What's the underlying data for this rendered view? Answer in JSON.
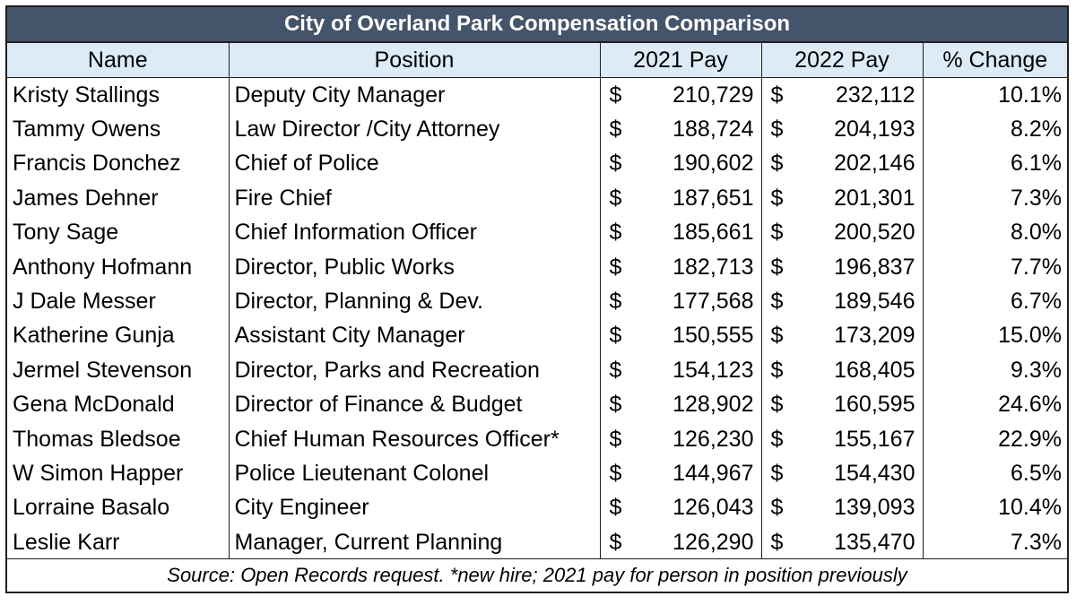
{
  "title": "City of Overland Park Compensation Comparison",
  "headers": {
    "name": "Name",
    "position": "Position",
    "pay_2021": "2021 Pay",
    "pay_2022": "2022 Pay",
    "change": "% Change"
  },
  "currency_symbol": "$",
  "rows": [
    {
      "name": "Kristy Stallings",
      "position": "Deputy City Manager",
      "pay_2021": "210,729",
      "pay_2022": "232,112",
      "change": "10.1%"
    },
    {
      "name": "Tammy Owens",
      "position": "Law Director /City Attorney",
      "pay_2021": "188,724",
      "pay_2022": "204,193",
      "change": "8.2%"
    },
    {
      "name": "Francis Donchez",
      "position": "Chief of Police",
      "pay_2021": "190,602",
      "pay_2022": "202,146",
      "change": "6.1%"
    },
    {
      "name": "James Dehner",
      "position": "Fire Chief",
      "pay_2021": "187,651",
      "pay_2022": "201,301",
      "change": "7.3%"
    },
    {
      "name": "Tony Sage",
      "position": "Chief Information Officer",
      "pay_2021": "185,661",
      "pay_2022": "200,520",
      "change": "8.0%"
    },
    {
      "name": "Anthony Hofmann",
      "position": "Director, Public Works",
      "pay_2021": "182,713",
      "pay_2022": "196,837",
      "change": "7.7%"
    },
    {
      "name": "J Dale Messer",
      "position": "Director, Planning & Dev.",
      "pay_2021": "177,568",
      "pay_2022": "189,546",
      "change": "6.7%"
    },
    {
      "name": "Katherine Gunja",
      "position": "Assistant City Manager",
      "pay_2021": "150,555",
      "pay_2022": "173,209",
      "change": "15.0%"
    },
    {
      "name": "Jermel Stevenson",
      "position": "Director, Parks and Recreation",
      "pay_2021": "154,123",
      "pay_2022": "168,405",
      "change": "9.3%"
    },
    {
      "name": "Gena McDonald",
      "position": "Director of Finance & Budget",
      "pay_2021": "128,902",
      "pay_2022": "160,595",
      "change": "24.6%"
    },
    {
      "name": "Thomas Bledsoe",
      "position": "Chief Human Resources Officer*",
      "pay_2021": "126,230",
      "pay_2022": "155,167",
      "change": "22.9%"
    },
    {
      "name": "W Simon Happer",
      "position": "Police Lieutenant Colonel",
      "pay_2021": "144,967",
      "pay_2022": "154,430",
      "change": "6.5%"
    },
    {
      "name": "Lorraine Basalo",
      "position": "City Engineer",
      "pay_2021": "126,043",
      "pay_2022": "139,093",
      "change": "10.4%"
    },
    {
      "name": "Leslie Karr",
      "position": "Manager, Current Planning",
      "pay_2021": "126,290",
      "pay_2022": "135,470",
      "change": "7.3%"
    }
  ],
  "footer": "Source: Open Records request. *new hire; 2021 pay for person in position previously",
  "colors": {
    "title_bg": "#44546a",
    "title_text": "#ffffff",
    "header_bg": "#ddebf7",
    "border": "#1f1f1f"
  }
}
